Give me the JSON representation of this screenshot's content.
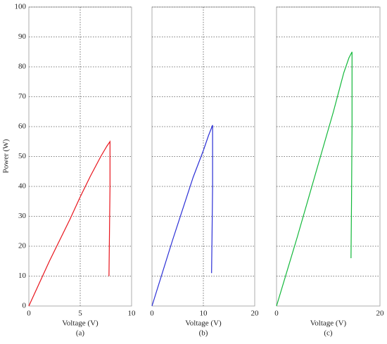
{
  "chart_data": [
    {
      "type": "line",
      "y_label": "Power (W)",
      "x_label": "Voltage (V)",
      "caption": "(a)",
      "color": "#e8141c",
      "x": [
        0,
        2,
        4,
        5,
        6,
        7,
        7.6,
        7.9,
        7.9,
        7.85,
        7.8
      ],
      "values": [
        0,
        15,
        29,
        36.5,
        43.5,
        50,
        53.5,
        55,
        40,
        25,
        10
      ],
      "xlim": [
        0,
        10
      ],
      "xticks": [
        0,
        5,
        10
      ],
      "ylim": [
        0,
        100
      ],
      "yticks": [
        0,
        10,
        20,
        30,
        40,
        50,
        60,
        70,
        80,
        90,
        100
      ],
      "grid": true
    },
    {
      "type": "line",
      "x_label": "Voltage (V)",
      "caption": "(b)",
      "color": "#2b2fd6",
      "x": [
        0,
        4,
        8,
        10,
        11,
        11.8,
        11.8,
        11.7,
        11.6
      ],
      "values": [
        0,
        22,
        43,
        52,
        57,
        60.5,
        40,
        25,
        11
      ],
      "xlim": [
        0,
        20
      ],
      "xticks": [
        0,
        10,
        20
      ],
      "ylim": [
        0,
        100
      ],
      "grid": true
    },
    {
      "type": "line",
      "x_label": "Voltage (V)",
      "caption": "(c)",
      "color": "#12b83a",
      "x": [
        0,
        4,
        8,
        11,
        13,
        14,
        14.6,
        14.6,
        14.5,
        14.4
      ],
      "values": [
        0,
        23,
        47,
        65,
        78,
        83,
        85,
        60,
        35,
        16
      ],
      "xlim": [
        0,
        20
      ],
      "xticks": [
        0,
        20
      ],
      "ylim": [
        0,
        100
      ],
      "grid": true
    }
  ]
}
